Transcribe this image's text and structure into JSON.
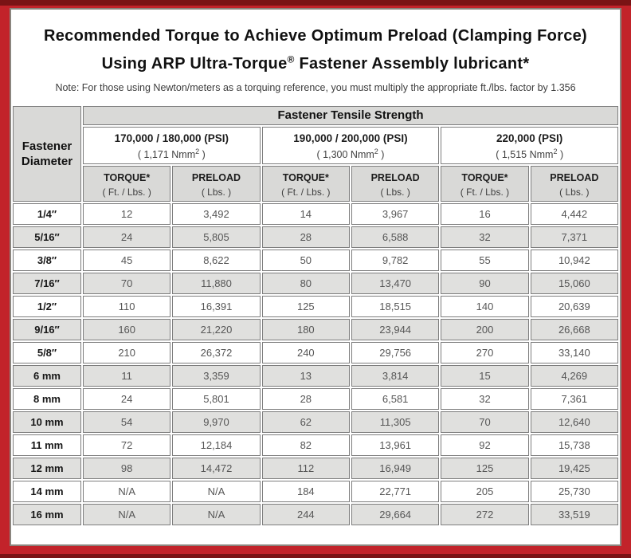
{
  "colors": {
    "frame_red": "#c2232a",
    "frame_dark_strip": "#7a1315",
    "panel_border": "#8b857e",
    "cell_border": "#7d7d7d",
    "header_gray": "#d9d9d7",
    "alt_row_gray": "#e0e0de",
    "value_text": "#565656"
  },
  "title": {
    "line1": "Recommended Torque to Achieve Optimum Preload (Clamping Force)",
    "line2_pre": "Using ARP Ultra-Torque",
    "line2_sup": "®",
    "line2_post": " Fastener Assembly lubricant*"
  },
  "note": "Note: For those using Newton/meters as a torquing reference, you must multiply the appropriate ft./lbs. factor by 1.356",
  "table": {
    "corner": {
      "line1": "Fastener",
      "line2": "Diameter"
    },
    "tensile_header": "Fastener Tensile Strength",
    "groups": [
      {
        "psi": "170,000 / 180,000 (PSI)",
        "nmm_open": "( 1,171 Nmm",
        "nmm_sup": "2",
        "nmm_close": " )"
      },
      {
        "psi": "190,000 / 200,000 (PSI)",
        "nmm_open": "( 1,300 Nmm",
        "nmm_sup": "2",
        "nmm_close": " )"
      },
      {
        "psi": "220,000 (PSI)",
        "nmm_open": "( 1,515 Nmm",
        "nmm_sup": "2",
        "nmm_close": " )"
      }
    ],
    "subheaders": {
      "torque_label": "TORQUE*",
      "torque_unit": "( Ft. / Lbs. )",
      "preload_label": "PRELOAD",
      "preload_unit": "( Lbs. )"
    },
    "rows": [
      {
        "dia": "1/4″",
        "values": [
          "12",
          "3,492",
          "14",
          "3,967",
          "16",
          "4,442"
        ]
      },
      {
        "dia": "5/16″",
        "values": [
          "24",
          "5,805",
          "28",
          "6,588",
          "32",
          "7,371"
        ]
      },
      {
        "dia": "3/8″",
        "values": [
          "45",
          "8,622",
          "50",
          "9,782",
          "55",
          "10,942"
        ]
      },
      {
        "dia": "7/16″",
        "values": [
          "70",
          "11,880",
          "80",
          "13,470",
          "90",
          "15,060"
        ]
      },
      {
        "dia": "1/2″",
        "values": [
          "110",
          "16,391",
          "125",
          "18,515",
          "140",
          "20,639"
        ]
      },
      {
        "dia": "9/16″",
        "values": [
          "160",
          "21,220",
          "180",
          "23,944",
          "200",
          "26,668"
        ]
      },
      {
        "dia": "5/8″",
        "values": [
          "210",
          "26,372",
          "240",
          "29,756",
          "270",
          "33,140"
        ]
      },
      {
        "dia": "6 mm",
        "values": [
          "11",
          "3,359",
          "13",
          "3,814",
          "15",
          "4,269"
        ]
      },
      {
        "dia": "8 mm",
        "values": [
          "24",
          "5,801",
          "28",
          "6,581",
          "32",
          "7,361"
        ]
      },
      {
        "dia": "10 mm",
        "values": [
          "54",
          "9,970",
          "62",
          "11,305",
          "70",
          "12,640"
        ]
      },
      {
        "dia": "11 mm",
        "values": [
          "72",
          "12,184",
          "82",
          "13,961",
          "92",
          "15,738"
        ]
      },
      {
        "dia": "12 mm",
        "values": [
          "98",
          "14,472",
          "112",
          "16,949",
          "125",
          "19,425"
        ]
      },
      {
        "dia": "14 mm",
        "values": [
          "N/A",
          "N/A",
          "184",
          "22,771",
          "205",
          "25,730"
        ]
      },
      {
        "dia": "16 mm",
        "values": [
          "N/A",
          "N/A",
          "244",
          "29,664",
          "272",
          "33,519"
        ]
      }
    ]
  }
}
